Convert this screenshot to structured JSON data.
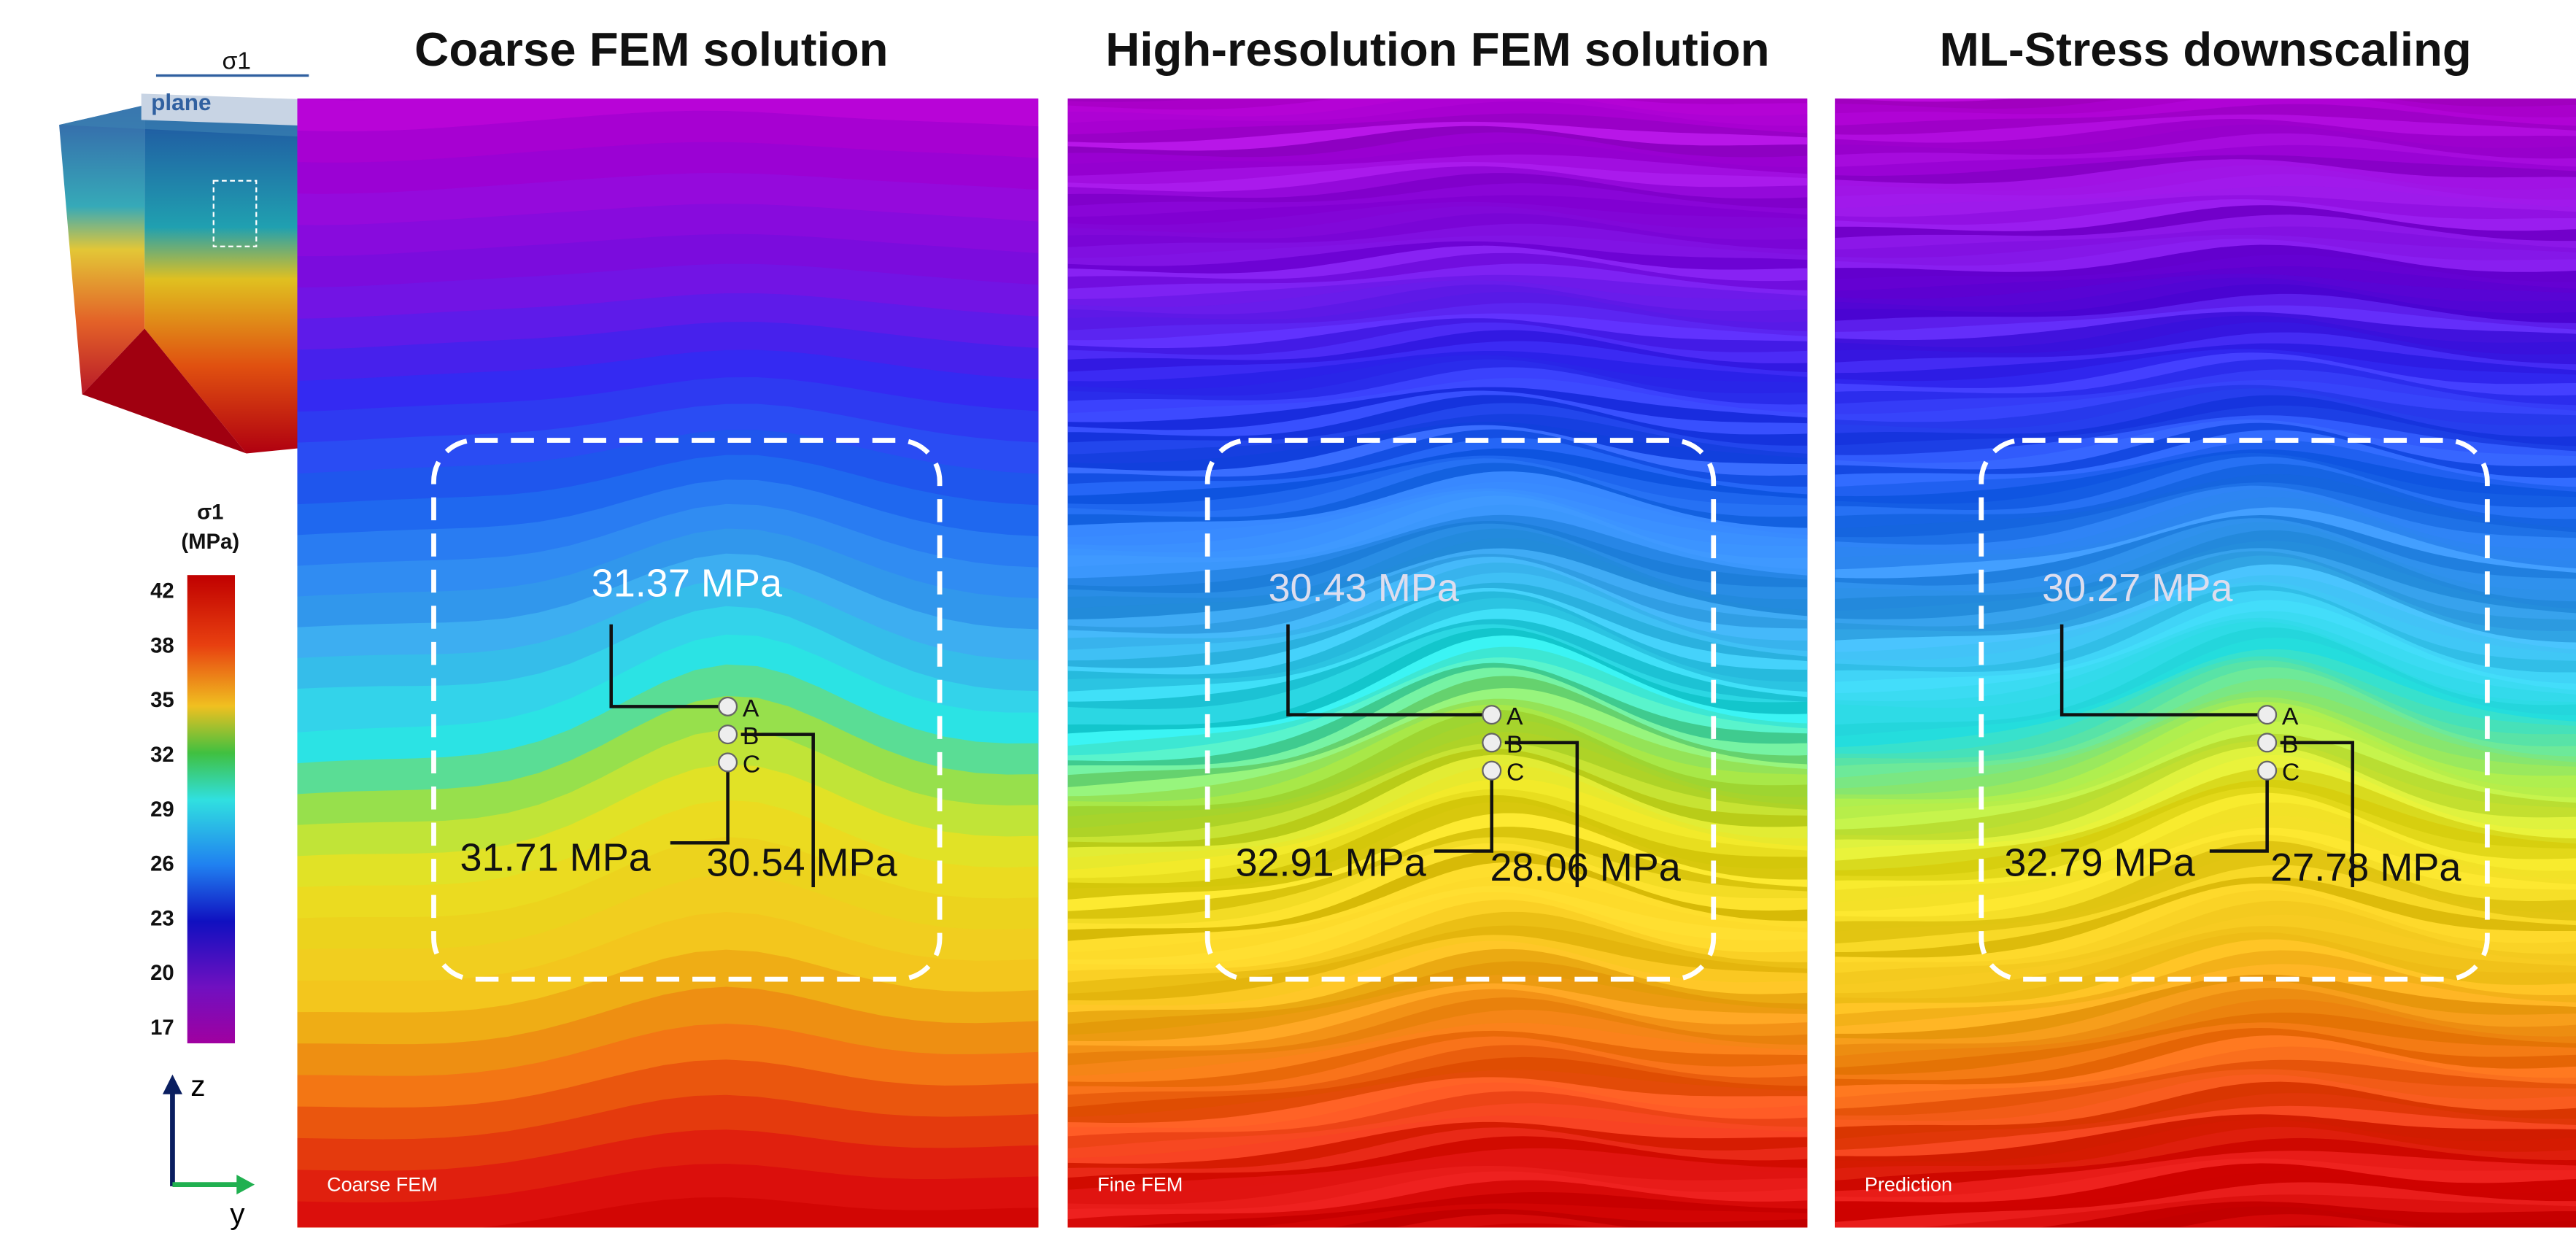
{
  "inset": {
    "label": "σ1",
    "plane": "plane"
  },
  "colorbar": {
    "title": [
      "σ1",
      "(MPa)"
    ],
    "ticks": [
      42,
      38,
      35,
      32,
      29,
      26,
      23,
      20,
      17
    ]
  },
  "axes": {
    "z": "z",
    "y": "y"
  },
  "panels": [
    {
      "title": "Coarse FEM solution",
      "tag": "Coarse FEM",
      "points": [
        "A",
        "B",
        "C"
      ],
      "annotations": [
        "31.37 MPa",
        "31.71 MPa",
        "30.54 MPa"
      ]
    },
    {
      "title": "High-resolution FEM solution",
      "tag": "Fine FEM",
      "points": [
        "A",
        "B",
        "C"
      ],
      "annotations": [
        "30.43 MPa",
        "32.91 MPa",
        "28.06 MPa"
      ]
    },
    {
      "title": "ML-Stress downscaling",
      "tag": "Prediction",
      "points": [
        "A",
        "B",
        "C"
      ],
      "annotations": [
        "30.27 MPa",
        "32.79 MPa",
        "27.78 MPa"
      ]
    }
  ]
}
